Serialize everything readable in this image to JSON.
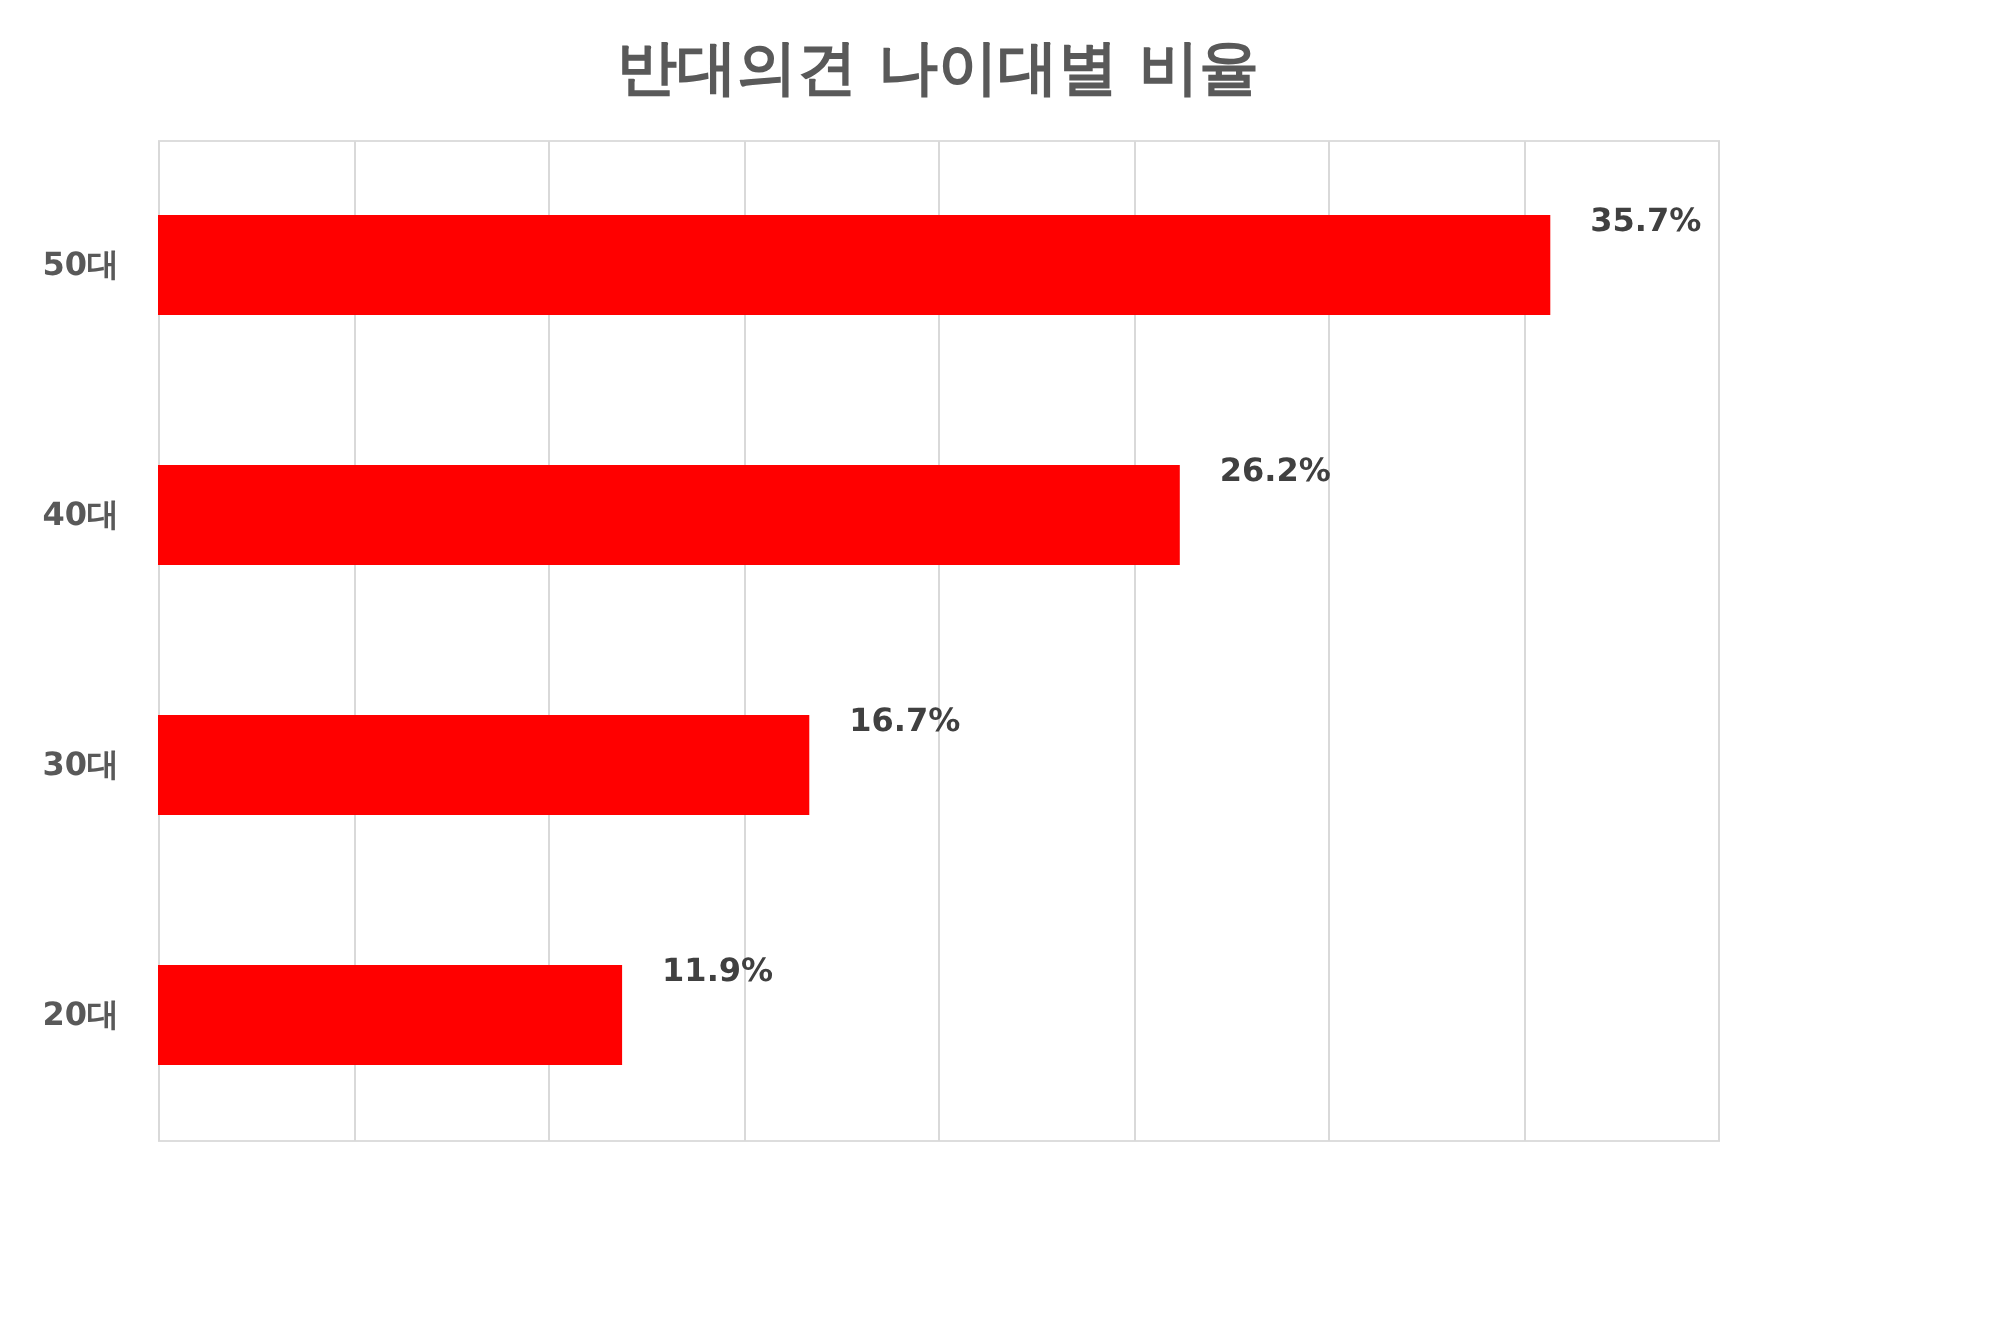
{
  "chart_data": {
    "type": "bar",
    "orientation": "horizontal",
    "title": "반대의견 나이대별 비율",
    "categories": [
      "50대",
      "40대",
      "30대",
      "20대"
    ],
    "values": [
      35.7,
      26.2,
      16.7,
      11.9
    ],
    "value_labels": [
      "35.7%",
      "26.2%",
      "16.7%",
      "11.9%"
    ],
    "color": "#ff0000",
    "xlim": [
      0,
      40
    ],
    "xticks": [
      {
        "value": 0,
        "label": null
      },
      {
        "value": 5,
        "label": null
      },
      {
        "value": 10,
        "label": null
      },
      {
        "value": 15,
        "label": null
      },
      {
        "value": 20,
        "label": null
      },
      {
        "value": 25,
        "label": null
      },
      {
        "value": 30,
        "label": null
      },
      {
        "value": 35,
        "label": null
      },
      {
        "value": 40,
        "label": null
      }
    ],
    "grid": "x",
    "tick_labels": "y"
  }
}
